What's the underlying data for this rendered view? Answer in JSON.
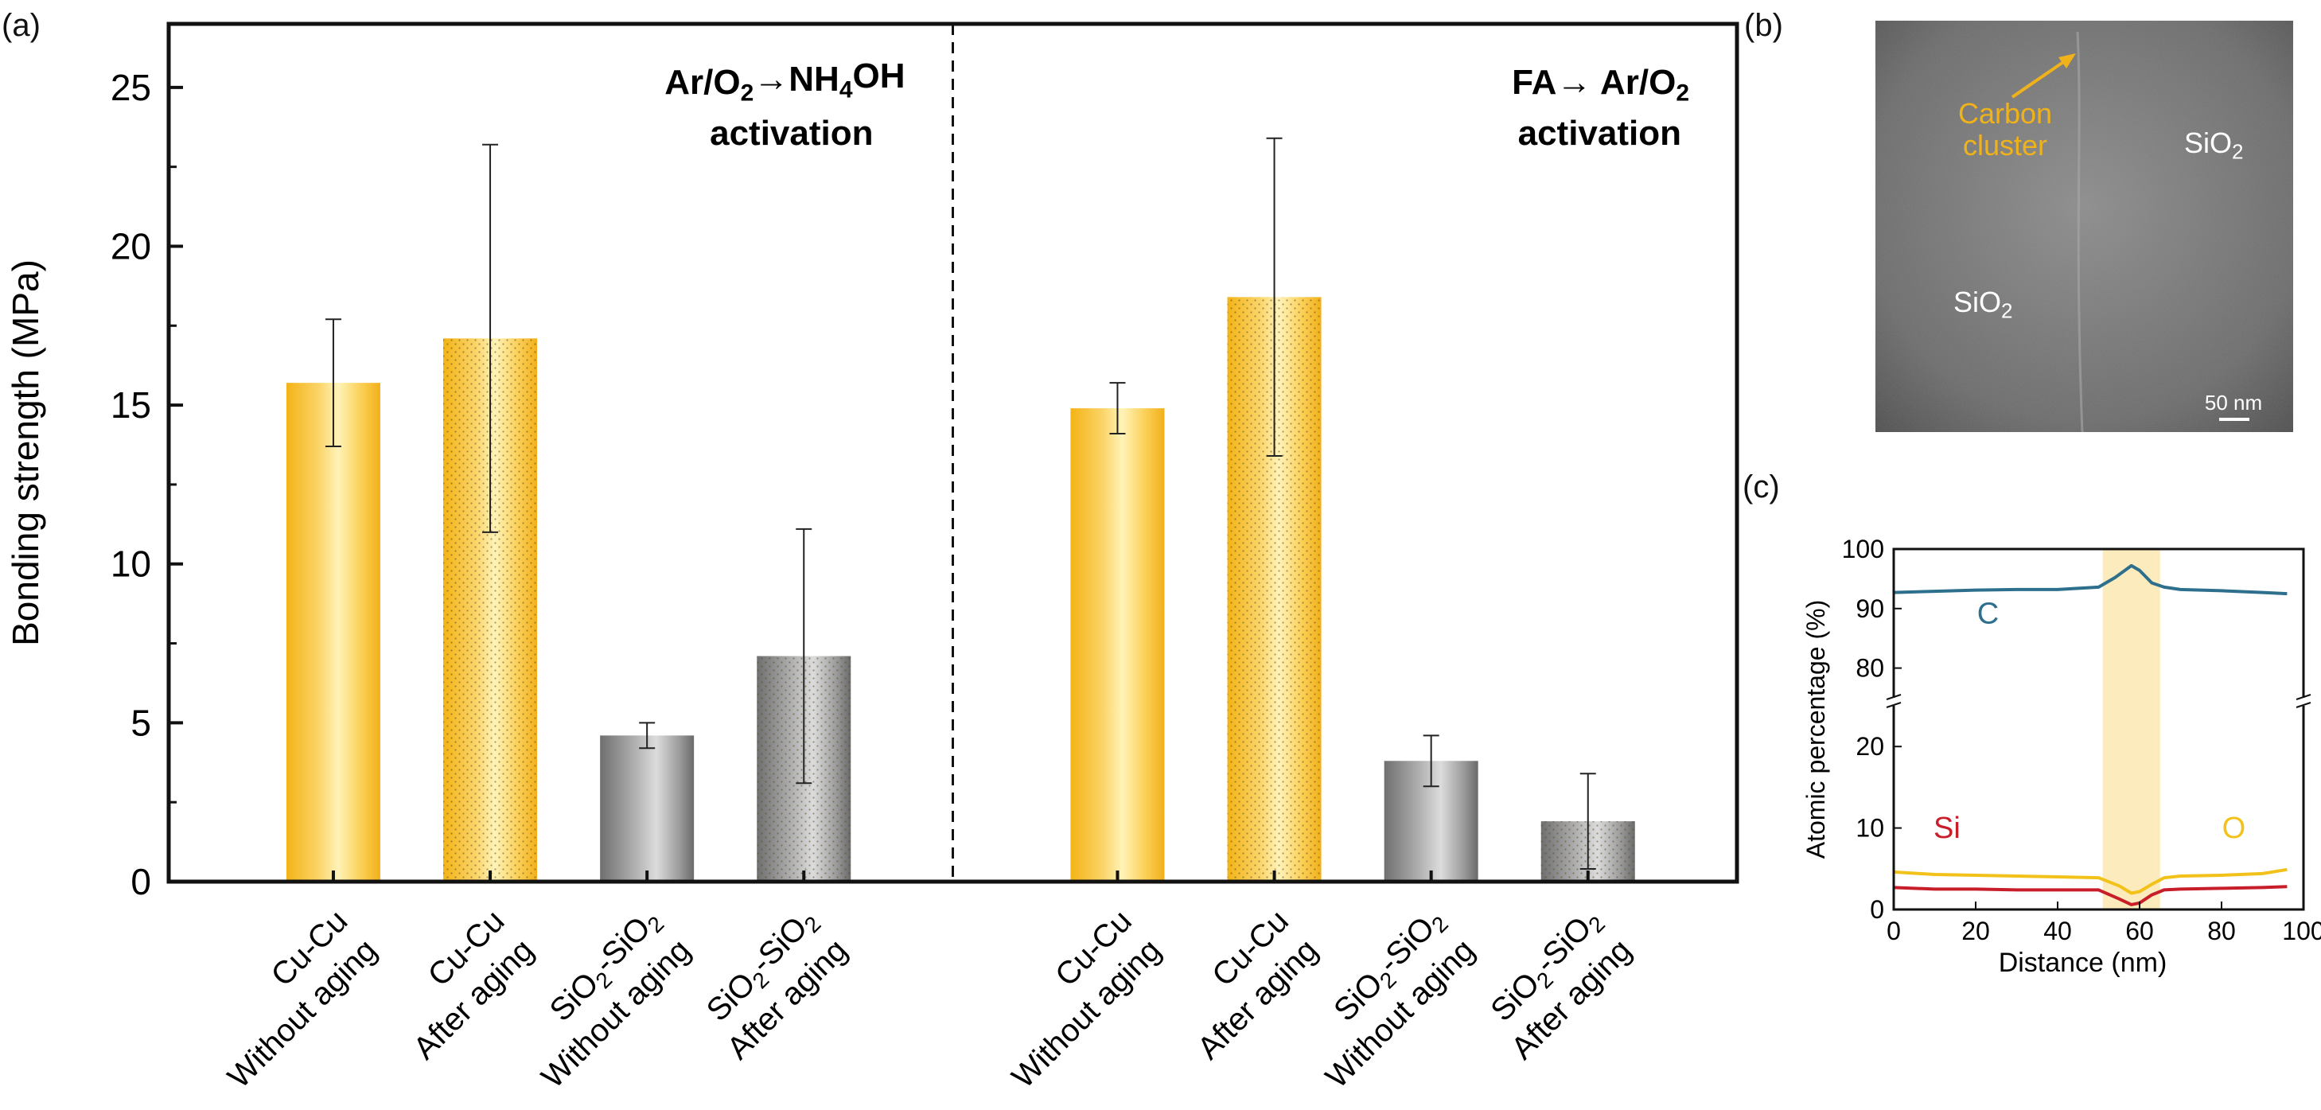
{
  "panel_labels": {
    "a": "(a)",
    "b": "(b)",
    "c": "(c)"
  },
  "chart_data": [
    {
      "type": "bar",
      "ylabel": "Bonding strength (MPa)",
      "ylim": [
        0,
        27
      ],
      "yticks": [
        0,
        5,
        10,
        15,
        20,
        25
      ],
      "grid": false,
      "groups": [
        {
          "title_parts": [
            "Ar/O",
            "2",
            "→NH",
            "4",
            "OH"
          ],
          "title_line2": "activation"
        },
        {
          "title_parts": [
            "FA→ Ar/O",
            "2"
          ],
          "title_line2": "activation"
        }
      ],
      "categories": [
        {
          "line1": [
            "Cu-Cu"
          ],
          "line2": "Without aging"
        },
        {
          "line1": [
            "Cu-Cu"
          ],
          "line2": "After aging"
        },
        {
          "line1": [
            "SiO",
            "2",
            "-SiO",
            "2"
          ],
          "line2": "Without aging"
        },
        {
          "line1": [
            "SiO",
            "2",
            "-SiO",
            "2"
          ],
          "line2": "After aging"
        },
        {
          "line1": [
            "Cu-Cu"
          ],
          "line2": "Without aging"
        },
        {
          "line1": [
            "Cu-Cu"
          ],
          "line2": "After aging"
        },
        {
          "line1": [
            "SiO",
            "2",
            "-SiO",
            "2"
          ],
          "line2": "Without aging"
        },
        {
          "line1": [
            "SiO",
            "2",
            "-SiO",
            "2"
          ],
          "line2": "After aging"
        }
      ],
      "values": [
        15.7,
        17.1,
        4.6,
        7.1,
        14.9,
        18.4,
        3.8,
        1.9
      ],
      "errors": [
        2.0,
        6.1,
        0.4,
        4.0,
        0.8,
        5.0,
        0.8,
        1.5
      ],
      "materials": [
        "Cu",
        "Cu",
        "SiO2",
        "SiO2",
        "Cu",
        "Cu",
        "SiO2",
        "SiO2"
      ],
      "aged": [
        false,
        true,
        false,
        true,
        false,
        true,
        false,
        true
      ],
      "colors": {
        "cu": "#f7c12a",
        "sio2": "#8a8a8a"
      }
    },
    {
      "type": "line",
      "xlabel": "Distance (nm)",
      "ylabel": "Atomic percentage (%)",
      "xlim": [
        0,
        100
      ],
      "xticks": [
        0,
        20,
        40,
        60,
        80,
        100
      ],
      "y_upper_ticks": [
        80,
        90,
        100
      ],
      "y_lower_ticks": [
        0,
        10,
        20
      ],
      "broken_y_axis": true,
      "highlight_x": [
        51,
        65
      ],
      "series": [
        {
          "name": "C",
          "color": "#2e6f8e",
          "x": [
            0,
            10,
            20,
            30,
            40,
            50,
            54,
            58,
            60,
            63,
            66,
            70,
            80,
            90,
            96
          ],
          "y": [
            92.7,
            92.9,
            93.1,
            93.2,
            93.2,
            93.6,
            95.2,
            97.2,
            96.4,
            94.3,
            93.6,
            93.2,
            93.0,
            92.7,
            92.5
          ]
        },
        {
          "name": "O",
          "color": "#f2c21b",
          "x": [
            0,
            10,
            20,
            30,
            40,
            50,
            55,
            58,
            60,
            63,
            66,
            70,
            80,
            90,
            96
          ],
          "y": [
            4.6,
            4.3,
            4.2,
            4.1,
            4.0,
            3.9,
            2.9,
            2.0,
            2.2,
            3.1,
            3.9,
            4.1,
            4.2,
            4.4,
            4.9
          ]
        },
        {
          "name": "Si",
          "color": "#c81e2a",
          "x": [
            0,
            10,
            20,
            30,
            40,
            50,
            55,
            58,
            60,
            63,
            66,
            70,
            80,
            90,
            96
          ],
          "y": [
            2.7,
            2.5,
            2.5,
            2.4,
            2.4,
            2.4,
            1.3,
            0.6,
            0.8,
            1.8,
            2.4,
            2.5,
            2.6,
            2.7,
            2.8
          ]
        }
      ]
    }
  ],
  "micrograph": {
    "annotation": [
      "Carbon",
      "cluster"
    ],
    "regions": [
      [
        "SiO",
        "2"
      ],
      [
        "SiO",
        "2"
      ]
    ],
    "scale_bar": "50 nm",
    "annotation_color": "#f0b21a"
  }
}
